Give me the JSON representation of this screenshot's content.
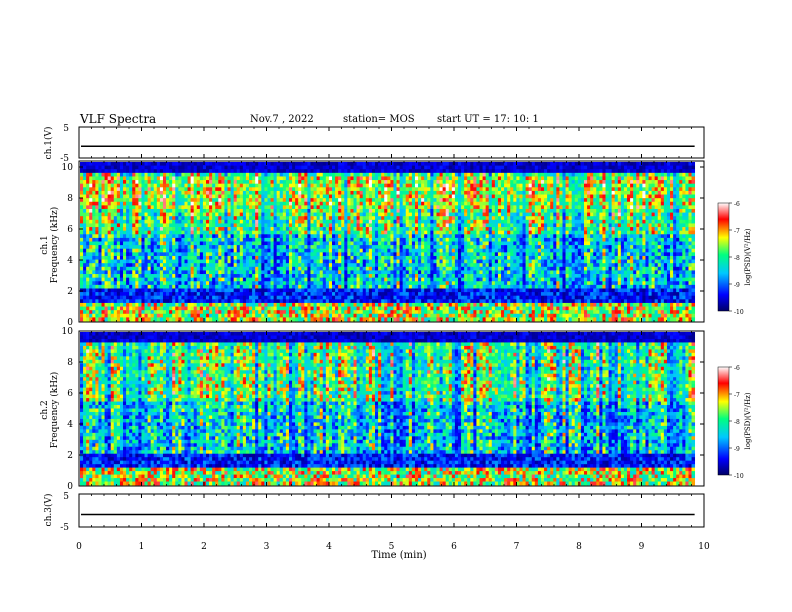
{
  "header": {
    "title": "VLF Spectra",
    "date": "Nov.7  , 2022",
    "station": "station= MOS",
    "start": "start  UT =   17: 10: 1"
  },
  "chart_data": [
    {
      "type": "line",
      "name": "ch1-voltage",
      "ylabel": "ch.1(V)",
      "ylim": [
        -5,
        5
      ],
      "yticks": [
        "5",
        "-5"
      ],
      "x": [
        0,
        10
      ],
      "y": [
        -1.2,
        -1.2
      ]
    },
    {
      "type": "heatmap",
      "name": "ch1-spectrogram",
      "ylabel_top": "ch.1",
      "ylabel": "Frequency (kHz)",
      "ylim": [
        0,
        10
      ],
      "yticks": [
        "0",
        "2",
        "4",
        "6",
        "8",
        "10"
      ],
      "xlim": [
        0,
        9.85
      ],
      "colorbar": {
        "label": "log(PSD)(V²/Hz)",
        "range": [
          -10,
          -6
        ],
        "ticks": [
          "-6",
          "-7",
          "-8",
          "-9",
          "-10"
        ]
      }
    },
    {
      "type": "heatmap",
      "name": "ch2-spectrogram",
      "ylabel_top": "ch.2",
      "ylabel": "Frequency (kHz)",
      "ylim": [
        0,
        10
      ],
      "yticks": [
        "0",
        "2",
        "4",
        "6",
        "8",
        "10"
      ],
      "xlim": [
        0,
        9.85
      ],
      "colorbar": {
        "label": "log(PSD)(V²/Hz)",
        "range": [
          -10,
          -6
        ],
        "ticks": [
          "-6",
          "-7",
          "-8",
          "-9",
          "-10"
        ]
      }
    },
    {
      "type": "line",
      "name": "ch3-voltage",
      "ylabel": "ch.3(V)",
      "ylim": [
        -5,
        5
      ],
      "yticks": [
        "5",
        "-5"
      ],
      "x": [
        0,
        10
      ],
      "y": [
        -1.2,
        -1.2
      ]
    }
  ],
  "xaxis": {
    "label": "Time  (min)",
    "ticks": [
      "0",
      "1",
      "2",
      "3",
      "4",
      "5",
      "6",
      "7",
      "8",
      "9",
      "10"
    ],
    "range": [
      0,
      10
    ]
  },
  "colors": {
    "colormap": [
      "#000066",
      "#0000ff",
      "#00c8ff",
      "#00ff80",
      "#ffff00",
      "#ff0000",
      "#ffffff"
    ]
  }
}
